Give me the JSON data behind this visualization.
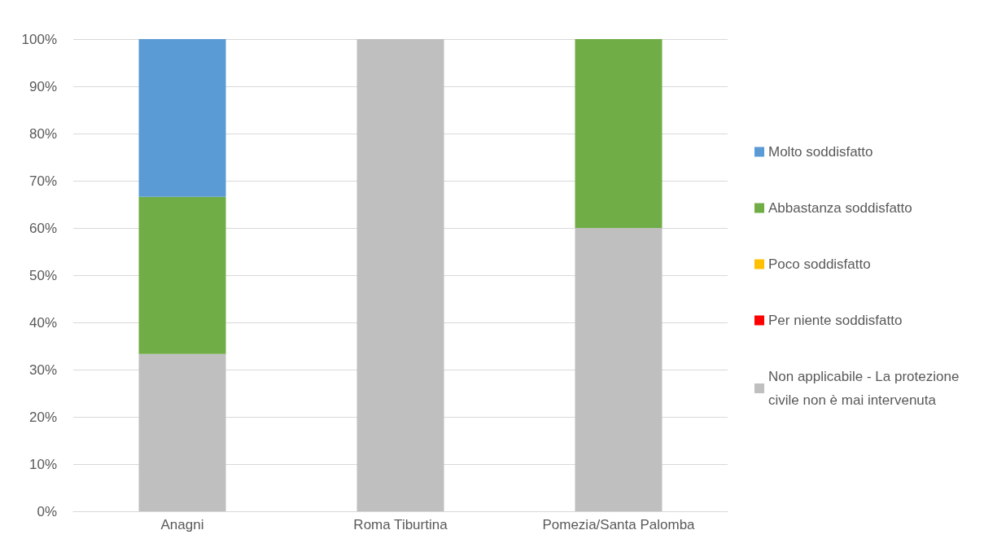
{
  "chart_data": {
    "type": "bar",
    "stacked": true,
    "categories": [
      "Anagni",
      "Roma Tiburtina",
      "Pomezia/Santa Palomba"
    ],
    "series": [
      {
        "name": "Non applicabile - La protezione civile non è mai intervenuta",
        "color": "#bfbfbf",
        "values": [
          33.3,
          100,
          60
        ]
      },
      {
        "name": "Per niente soddisfatto",
        "color": "#ff0000",
        "values": [
          0,
          0,
          0
        ]
      },
      {
        "name": "Poco soddisfatto",
        "color": "#ffc000",
        "values": [
          0,
          0,
          0
        ]
      },
      {
        "name": "Abbastanza soddisfatto",
        "color": "#70ad47",
        "values": [
          33.3,
          0,
          40
        ]
      },
      {
        "name": "Molto soddisfatto",
        "color": "#5b9bd5",
        "values": [
          33.4,
          0,
          0
        ]
      }
    ],
    "ylim": [
      0,
      100
    ],
    "yticks": [
      {
        "value": 0,
        "label": "0%"
      },
      {
        "value": 10,
        "label": "10%"
      },
      {
        "value": 20,
        "label": "20%"
      },
      {
        "value": 30,
        "label": "30%"
      },
      {
        "value": 40,
        "label": "40%"
      },
      {
        "value": 50,
        "label": "50%"
      },
      {
        "value": 60,
        "label": "60%"
      },
      {
        "value": 70,
        "label": "70%"
      },
      {
        "value": 80,
        "label": "80%"
      },
      {
        "value": 90,
        "label": "90%"
      },
      {
        "value": 100,
        "label": "100%"
      }
    ],
    "grid": "y",
    "legend": "right"
  }
}
